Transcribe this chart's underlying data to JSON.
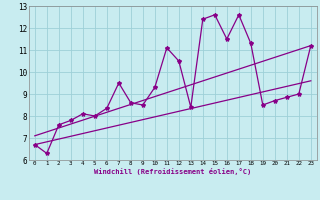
{
  "xlabel": "Windchill (Refroidissement éolien,°C)",
  "xlim": [
    -0.5,
    23.5
  ],
  "ylim": [
    6,
    13
  ],
  "yticks": [
    6,
    7,
    8,
    9,
    10,
    11,
    12,
    13
  ],
  "xticks": [
    0,
    1,
    2,
    3,
    4,
    5,
    6,
    7,
    8,
    9,
    10,
    11,
    12,
    13,
    14,
    15,
    16,
    17,
    18,
    19,
    20,
    21,
    22,
    23
  ],
  "bg_color": "#c8ecf0",
  "grid_color": "#9ed0d8",
  "line_color": "#880088",
  "line1_x": [
    0,
    1,
    2,
    3,
    4,
    5,
    6,
    7,
    8,
    9,
    10,
    11,
    12,
    13,
    14,
    15,
    16,
    17,
    18,
    19,
    20,
    21,
    22,
    23
  ],
  "line1_y": [
    6.7,
    6.3,
    7.6,
    7.8,
    8.1,
    8.0,
    8.35,
    9.5,
    8.6,
    8.5,
    9.3,
    11.1,
    10.5,
    8.4,
    12.4,
    12.6,
    11.5,
    12.6,
    11.3,
    8.5,
    8.7,
    8.85,
    9.0,
    11.2
  ],
  "line2_x": [
    0,
    23
  ],
  "line2_y": [
    7.1,
    11.2
  ],
  "line3_x": [
    0,
    23
  ],
  "line3_y": [
    6.7,
    9.6
  ]
}
